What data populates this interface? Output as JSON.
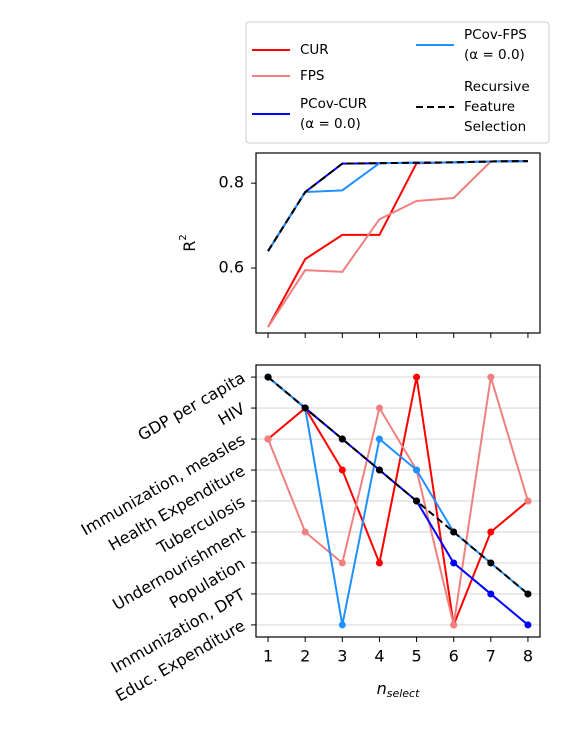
{
  "chart_data": [
    {
      "type": "line",
      "ylabel": "R",
      "ylabel_superscript": "2",
      "sharex": true,
      "x": [
        1,
        2,
        3,
        4,
        5,
        6,
        7,
        8
      ],
      "xlim": [
        0.675,
        8.325
      ],
      "ylim": [
        0.447,
        0.871
      ],
      "yticks": [
        0.6,
        0.8
      ],
      "grid": false,
      "markers": false,
      "legend": "upper center",
      "series": [
        {
          "name": "CUR",
          "color": "#ff0000",
          "linestyle": "solid",
          "values": [
            0.461,
            0.621,
            0.678,
            0.678,
            0.847,
            0.849,
            0.851,
            0.852
          ]
        },
        {
          "name": "FPS",
          "color": "#f08080",
          "linestyle": "solid",
          "values": [
            0.461,
            0.595,
            0.591,
            0.715,
            0.758,
            0.765,
            0.851,
            0.852
          ]
        },
        {
          "name": "PCov-CUR\n(α = 0.0)",
          "color": "#0000ff",
          "linestyle": "solid",
          "values": [
            0.64,
            0.779,
            0.846,
            0.847,
            0.848,
            0.849,
            0.851,
            0.852
          ]
        },
        {
          "name": "PCov-FPS\n(α = 0.0)",
          "color": "#1e90ff",
          "linestyle": "solid",
          "values": [
            0.64,
            0.779,
            0.783,
            0.847,
            0.848,
            0.849,
            0.851,
            0.852
          ]
        },
        {
          "name": "Recursive\nFeature\nSelection",
          "color": "#000000",
          "linestyle": "dashed",
          "values": [
            0.64,
            0.779,
            0.846,
            0.847,
            0.848,
            0.849,
            0.851,
            0.852
          ]
        }
      ]
    },
    {
      "type": "line",
      "xlabel": "n",
      "xlabel_subscript": "select",
      "x": [
        1,
        2,
        3,
        4,
        5,
        6,
        7,
        8
      ],
      "xlim": [
        0.675,
        8.325
      ],
      "xticks": [
        1,
        2,
        3,
        4,
        5,
        6,
        7,
        8
      ],
      "ylim": [
        -0.39,
        8.39
      ],
      "yticks": [
        {
          "value": 8,
          "label": "GDP per capita"
        },
        {
          "value": 7,
          "label": "HIV"
        },
        {
          "value": 6,
          "label": "Immunization, measles"
        },
        {
          "value": 5,
          "label": "Health Expenditure"
        },
        {
          "value": 4,
          "label": "Tuberculosis"
        },
        {
          "value": 3,
          "label": "Undernourishment"
        },
        {
          "value": 2,
          "label": "Population"
        },
        {
          "value": 1,
          "label": "Immunization, DPT"
        },
        {
          "value": 0,
          "label": "Educ. Expenditure"
        }
      ],
      "grid": true,
      "markers": true,
      "series": [
        {
          "color": "#ff0000",
          "linestyle": "solid",
          "values": [
            6,
            7,
            5,
            2,
            8,
            0,
            3,
            4
          ]
        },
        {
          "color": "#f08080",
          "linestyle": "solid",
          "values": [
            6,
            3,
            2,
            7,
            5,
            0,
            8,
            4
          ]
        },
        {
          "color": "#0000ff",
          "linestyle": "solid",
          "values": [
            8,
            7,
            6,
            5,
            4,
            2,
            1,
            0
          ]
        },
        {
          "color": "#1e90ff",
          "linestyle": "solid",
          "values": [
            8,
            7,
            0,
            6,
            5,
            3,
            2,
            1
          ]
        },
        {
          "color": "#000000",
          "linestyle": "dashed",
          "values": [
            8,
            7,
            6,
            5,
            4,
            3,
            2,
            1
          ]
        }
      ]
    }
  ]
}
